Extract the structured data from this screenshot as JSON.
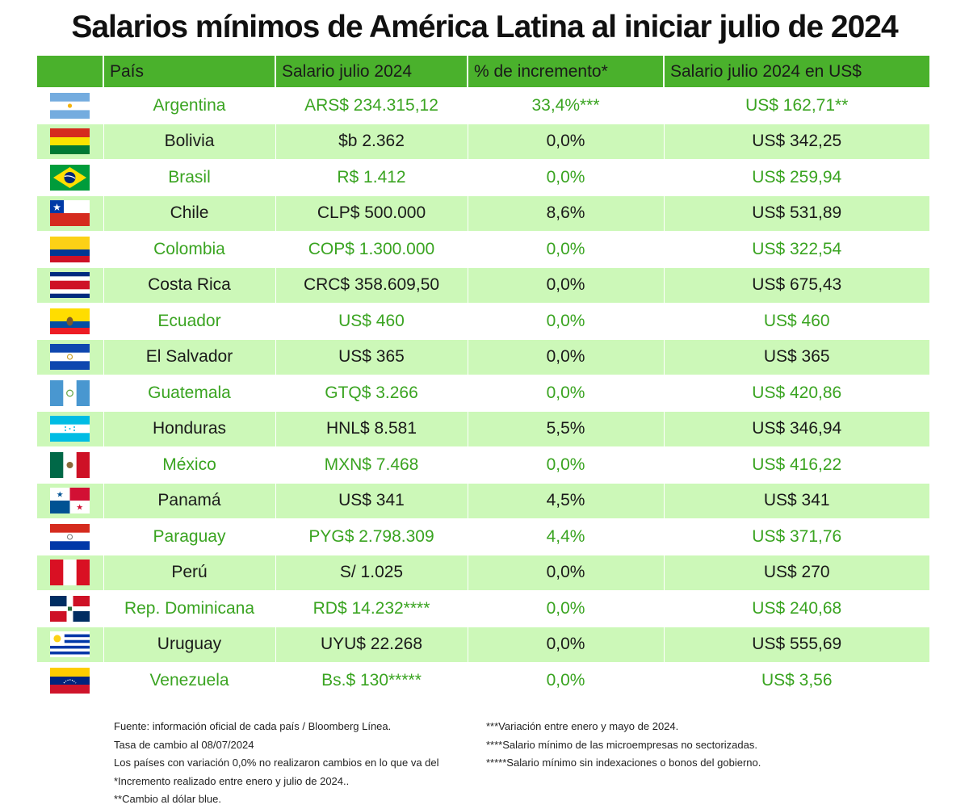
{
  "title": "Salarios mínimos de América Latina al iniciar julio de 2024",
  "headers": {
    "flag": "",
    "pais": "País",
    "salario": "Salario julio 2024",
    "incremento": "% de incremento*",
    "usd": "Salario julio 2024 en US$"
  },
  "rows": [
    {
      "pais": "Argentina",
      "salario": "ARS$ 234.315,12",
      "incremento": "33,4%***",
      "usd": "US$ 162,71**",
      "flag_icon": "argentina-flag"
    },
    {
      "pais": "Bolivia",
      "salario": "$b 2.362",
      "incremento": "0,0%",
      "usd": "US$ 342,25",
      "flag_icon": "bolivia-flag"
    },
    {
      "pais": "Brasil",
      "salario": "R$ 1.412",
      "incremento": "0,0%",
      "usd": "US$ 259,94",
      "flag_icon": "brazil-flag"
    },
    {
      "pais": "Chile",
      "salario": "CLP$ 500.000",
      "incremento": "8,6%",
      "usd": "US$ 531,89",
      "flag_icon": "chile-flag"
    },
    {
      "pais": "Colombia",
      "salario": "COP$ 1.300.000",
      "incremento": "0,0%",
      "usd": "US$ 322,54",
      "flag_icon": "colombia-flag"
    },
    {
      "pais": "Costa Rica",
      "salario": "CRC$ 358.609,50",
      "incremento": "0,0%",
      "usd": "US$ 675,43",
      "flag_icon": "costa-rica-flag"
    },
    {
      "pais": "Ecuador",
      "salario": "US$ 460",
      "incremento": "0,0%",
      "usd": "US$ 460",
      "flag_icon": "ecuador-flag"
    },
    {
      "pais": "El Salvador",
      "salario": "US$ 365",
      "incremento": "0,0%",
      "usd": "US$ 365",
      "flag_icon": "el-salvador-flag"
    },
    {
      "pais": "Guatemala",
      "salario": "GTQ$ 3.266",
      "incremento": "0,0%",
      "usd": "US$ 420,86",
      "flag_icon": "guatemala-flag"
    },
    {
      "pais": "Honduras",
      "salario": "HNL$ 8.581",
      "incremento": "5,5%",
      "usd": "US$ 346,94",
      "flag_icon": "honduras-flag"
    },
    {
      "pais": "México",
      "salario": "MXN$ 7.468",
      "incremento": "0,0%",
      "usd": "US$ 416,22",
      "flag_icon": "mexico-flag"
    },
    {
      "pais": "Panamá",
      "salario": "US$ 341",
      "incremento": "4,5%",
      "usd": "US$ 341",
      "flag_icon": "panama-flag"
    },
    {
      "pais": "Paraguay",
      "salario": "PYG$ 2.798.309",
      "incremento": "4,4%",
      "usd": "US$ 371,76",
      "flag_icon": "paraguay-flag"
    },
    {
      "pais": "Perú",
      "salario": "S/ 1.025",
      "incremento": "0,0%",
      "usd": "US$ 270",
      "flag_icon": "peru-flag"
    },
    {
      "pais": "Rep. Dominicana",
      "salario": "RD$ 14.232****",
      "incremento": "0,0%",
      "usd": "US$ 240,68",
      "flag_icon": "dominican-republic-flag"
    },
    {
      "pais": "Uruguay",
      "salario": "UYU$ 22.268",
      "incremento": "0,0%",
      "usd": "US$ 555,69",
      "flag_icon": "uruguay-flag"
    },
    {
      "pais": "Venezuela",
      "salario": "Bs.$ 130*****",
      "incremento": "0,0%",
      "usd": "US$ 3,56",
      "flag_icon": "venezuela-flag"
    }
  ],
  "notes_left": [
    "Fuente: información oficial de cada país / Bloomberg Línea.",
    "Tasa de cambio al 08/07/2024",
    "Los países con variación 0,0% no realizaron cambios en lo que va del",
    "*Incremento realizado entre enero y julio de 2024..",
    "**Cambio al dólar blue."
  ],
  "notes_right": [
    "***Variación entre enero y mayo de 2024.",
    "****Salario mínimo de las microempresas no sectorizadas.",
    "*****Salario mínimo sin indexaciones o bonos del gobierno."
  ],
  "colors": {
    "header_green": "#4ab12c",
    "stripe_green": "#ccf8b8",
    "text_green": "#3aa421"
  }
}
